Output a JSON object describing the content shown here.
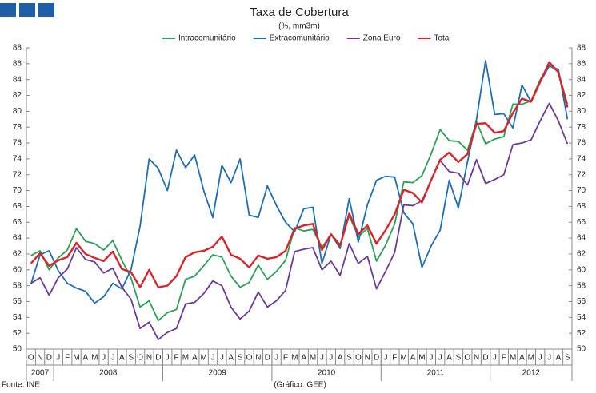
{
  "chart_data": {
    "type": "line",
    "title": "Taxa de Cobertura",
    "subtitle": "(%, mm3m)",
    "source": "Fonte: INE",
    "note": "(Gráfico: GEE)",
    "categories": [
      "O",
      "N",
      "D",
      "J",
      "F",
      "M",
      "A",
      "M",
      "J",
      "J",
      "A",
      "S",
      "O",
      "N",
      "D",
      "J",
      "F",
      "M",
      "A",
      "M",
      "J",
      "J",
      "A",
      "S",
      "O",
      "N",
      "D",
      "J",
      "F",
      "M",
      "A",
      "M",
      "J",
      "J",
      "A",
      "S",
      "O",
      "N",
      "D",
      "J",
      "F",
      "M",
      "A",
      "M",
      "J",
      "J",
      "A",
      "S",
      "O",
      "N",
      "D",
      "J",
      "F",
      "M",
      "A",
      "M",
      "J",
      "J",
      "A",
      "S"
    ],
    "years": [
      "2007",
      "2008",
      "2009",
      "2010",
      "2011",
      "2012"
    ],
    "series": [
      {
        "name": "Intracomunitário",
        "color": "#2e9f58",
        "values": [
          61.8,
          62.4,
          60.0,
          61.5,
          62.5,
          65.2,
          63.6,
          63.3,
          62.5,
          63.7,
          61.2,
          59.0,
          55.3,
          56.1,
          53.6,
          54.6,
          55.0,
          58.8,
          59.2,
          60.5,
          61.9,
          61.6,
          59.2,
          57.8,
          58.4,
          60.6,
          58.8,
          59.8,
          61.2,
          65.3,
          64.9,
          65.1,
          62.8,
          64.5,
          63.2,
          66.8,
          64.2,
          65.2,
          61.1,
          63.1,
          65.8,
          71.1,
          71.0,
          71.9,
          74.6,
          77.7,
          76.3,
          76.2,
          75.1,
          78.7,
          75.9,
          76.5,
          76.8,
          80.9,
          80.9,
          81.3,
          84.0,
          85.8,
          85.0,
          80.9
        ]
      },
      {
        "name": "Extracomunitário",
        "color": "#1f6db3",
        "values": [
          58.2,
          61.9,
          62.4,
          59.9,
          58.3,
          57.7,
          57.3,
          55.8,
          56.6,
          58.3,
          57.6,
          60.0,
          65.5,
          74.0,
          72.8,
          70.0,
          75.1,
          72.9,
          74.5,
          70.0,
          66.6,
          73.2,
          71.0,
          74.0,
          66.9,
          66.6,
          70.6,
          68.1,
          66.0,
          64.8,
          67.7,
          67.9,
          60.8,
          64.5,
          62.7,
          69.0,
          63.5,
          68.2,
          71.3,
          71.8,
          71.7,
          67.2,
          65.8,
          60.3,
          63.0,
          65.0,
          71.3,
          67.8,
          73.6,
          79.0,
          86.4,
          79.6,
          79.7,
          77.9,
          83.3,
          81.2,
          83.7,
          85.7,
          85.3,
          79.0
        ]
      },
      {
        "name": "Zona Euro",
        "color": "#6b3a96",
        "values": [
          58.3,
          59.0,
          56.8,
          59.0,
          60.1,
          62.8,
          61.3,
          61.0,
          59.6,
          60.2,
          57.8,
          56.3,
          52.6,
          53.4,
          51.2,
          52.1,
          52.6,
          55.7,
          55.9,
          57.0,
          58.6,
          58.0,
          55.3,
          53.8,
          54.8,
          57.2,
          55.3,
          56.1,
          57.4,
          62.3,
          62.6,
          62.8,
          60.0,
          61.1,
          59.3,
          63.3,
          60.8,
          61.7,
          57.6,
          59.8,
          62.2,
          68.2,
          68.1,
          68.7,
          71.3,
          73.8,
          72.4,
          72.2,
          70.7,
          73.9,
          70.9,
          71.4,
          72.0,
          75.8,
          76.0,
          76.4,
          78.8,
          81.0,
          78.8,
          75.9
        ]
      },
      {
        "name": "Total",
        "color": "#d7262b",
        "values": [
          60.8,
          62.1,
          60.5,
          61.2,
          61.6,
          63.4,
          62.0,
          61.5,
          61.1,
          62.3,
          60.1,
          59.7,
          57.8,
          60.0,
          57.8,
          58.0,
          59.2,
          61.6,
          62.2,
          62.4,
          62.9,
          64.2,
          61.9,
          61.4,
          60.3,
          61.8,
          61.4,
          61.6,
          62.4,
          65.2,
          65.6,
          65.8,
          62.5,
          64.5,
          63.0,
          67.1,
          64.5,
          65.6,
          63.3,
          65.0,
          67.0,
          70.1,
          69.7,
          68.5,
          71.3,
          73.9,
          74.8,
          73.6,
          74.6,
          78.4,
          78.5,
          77.3,
          77.5,
          79.8,
          81.6,
          81.2,
          83.7,
          86.2,
          84.9,
          80.5
        ]
      }
    ],
    "ylim": [
      50,
      88
    ],
    "yticks": [
      50,
      52,
      54,
      56,
      58,
      60,
      62,
      64,
      66,
      68,
      70,
      72,
      74,
      76,
      78,
      80,
      82,
      84,
      86,
      88
    ],
    "grid": false
  }
}
